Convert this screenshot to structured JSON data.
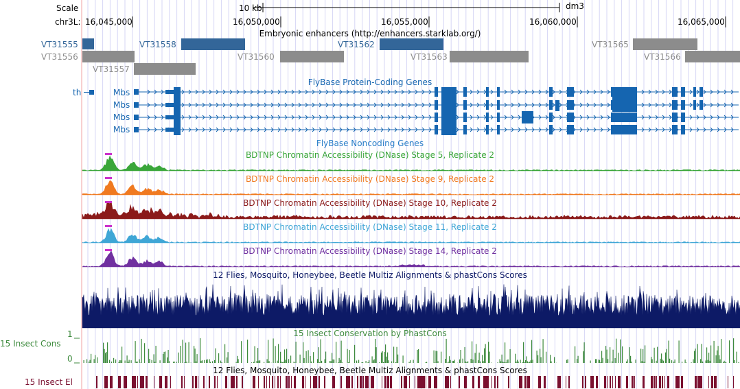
{
  "ruler": {
    "scale_label": "Scale",
    "scale_bar_label": "10 kb",
    "assembly": "dm3",
    "chrom_label": "chr3L:",
    "positions": [
      "16,045,000",
      "16,050,000",
      "16,055,000",
      "16,060,000",
      "16,065,000"
    ]
  },
  "tracks": {
    "enhancers": {
      "title": "Embryonic enhancers (http://enhancers.starklab.org/)",
      "items": [
        {
          "name": "VT31555",
          "color": "#336699"
        },
        {
          "name": "VT31556",
          "color": "#8c8c8c"
        },
        {
          "name": "VT31557",
          "color": "#8c8c8c"
        },
        {
          "name": "VT31558",
          "color": "#336699"
        },
        {
          "name": "VT31560",
          "color": "#8c8c8c"
        },
        {
          "name": "VT31562",
          "color": "#336699"
        },
        {
          "name": "VT31563",
          "color": "#8c8c8c"
        },
        {
          "name": "VT31565",
          "color": "#8c8c8c"
        },
        {
          "name": "VT31566",
          "color": "#8c8c8c"
        }
      ]
    },
    "genes": {
      "title": "FlyBase Protein-Coding Genes",
      "color": "#1565b0",
      "th_label": "th",
      "mbs_labels": [
        "Mbs",
        "Mbs",
        "Mbs",
        "Mbs"
      ]
    },
    "noncoding": {
      "title": "FlyBase Noncoding Genes",
      "color": "#2a7fc8"
    },
    "dnase": [
      {
        "title": "BDTNP Chromatin Accessibility (DNase) Stage 5, Replicate 2",
        "color": "#3aa63a"
      },
      {
        "title": "BDTNP Chromatin Accessibility (DNase) Stage 9, Replicate 2",
        "color": "#f07a21"
      },
      {
        "title": "BDTNP Chromatin Accessibility (DNase) Stage 10, Replicate 2",
        "color": "#8b1a1a"
      },
      {
        "title": "BDTNP Chromatin Accessibility (DNase) Stage 11, Replicate 2",
        "color": "#3fa6d6"
      },
      {
        "title": "BDTNP Chromatin Accessibility (DNase) Stage 14, Replicate 2",
        "color": "#7030a0"
      }
    ],
    "multiz": {
      "title": "12 Flies, Mosquito, Honeybee, Beetle Multiz Alignments & phastCons Scores",
      "color": "#0d1a66"
    },
    "phastcons": {
      "title": "15 Insect Conservation by PhastCons",
      "side_label": "15 Insect Cons",
      "max": "1",
      "min": "0",
      "color": "#3d8a3d"
    },
    "elements": {
      "title": "12 Flies, Mosquito, Honeybee, Beetle Multiz Alignments & phastCons Scores",
      "side_label": "15 Insect El",
      "color": "#7a1030"
    }
  }
}
